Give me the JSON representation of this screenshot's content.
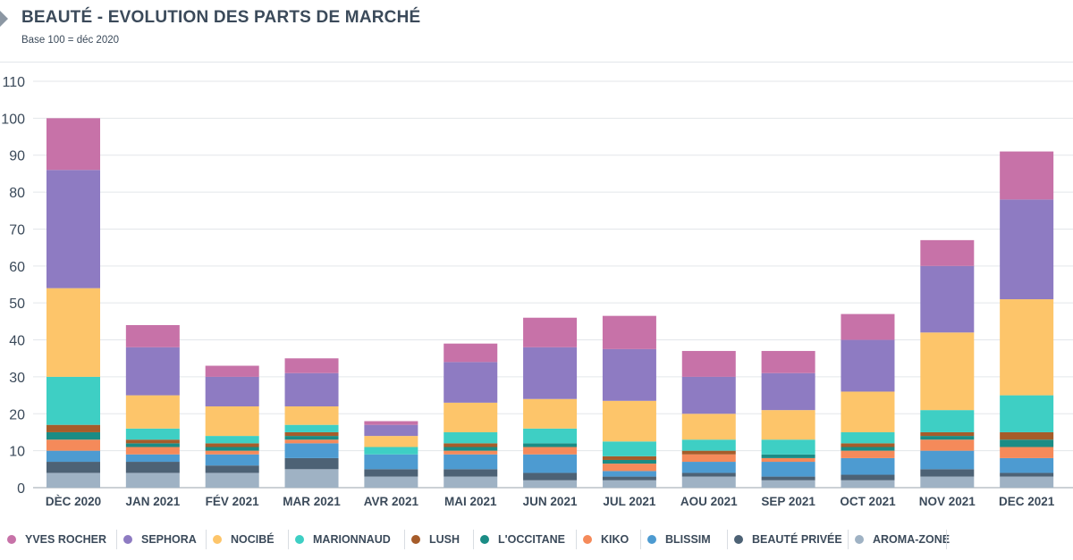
{
  "header": {
    "title": "BEAUTÉ - EVOLUTION DES PARTS DE MARCHÉ",
    "subtitle": "Base 100 = déc 2020"
  },
  "chart_data": {
    "type": "bar",
    "stacked": true,
    "categories": [
      "DÈC 2020",
      "JAN 2021",
      "FÉV 2021",
      "MAR 2021",
      "AVR 2021",
      "MAI 2021",
      "JUN 2021",
      "JUL 2021",
      "AOU 2021",
      "SEP 2021",
      "OCT 2021",
      "NOV 2021",
      "DEC 2021"
    ],
    "ylim": [
      0,
      110
    ],
    "yticks": [
      0,
      10,
      20,
      30,
      40,
      50,
      60,
      70,
      80,
      90,
      100,
      110
    ],
    "grid": true,
    "legend_position": "bottom",
    "series": [
      {
        "name": "AROMA-ZONE",
        "color": "#9fb2c4",
        "values": [
          4,
          4,
          4,
          5,
          3,
          3,
          2,
          2,
          3,
          2,
          2,
          3,
          3
        ]
      },
      {
        "name": "BEAUTÉ PRIVÉE",
        "color": "#4d6275",
        "values": [
          3,
          3,
          2,
          3,
          2,
          2,
          2,
          1,
          1,
          1,
          1.5,
          2,
          1
        ]
      },
      {
        "name": "BLISSIM",
        "color": "#4d9bd1",
        "values": [
          3,
          2,
          3,
          4,
          4,
          4,
          5,
          1.5,
          3,
          4,
          4.5,
          5,
          4
        ]
      },
      {
        "name": "KIKO",
        "color": "#f58a5a",
        "values": [
          3,
          2,
          1,
          1,
          0,
          1,
          2,
          2,
          2,
          1,
          2,
          3,
          3
        ]
      },
      {
        "name": "L'OCCITANE",
        "color": "#1a8c85",
        "values": [
          2,
          1,
          1,
          1,
          0,
          1,
          1,
          1,
          0,
          1,
          1,
          1,
          2
        ]
      },
      {
        "name": "LUSH",
        "color": "#a65c2a",
        "values": [
          2,
          1,
          1,
          1,
          0,
          1,
          0,
          1,
          1,
          0,
          1,
          1,
          2
        ]
      },
      {
        "name": "MARIONNAUD",
        "color": "#3ecfc4",
        "values": [
          13,
          3,
          2,
          2,
          2,
          3,
          4,
          4,
          3,
          4,
          3,
          6,
          10
        ]
      },
      {
        "name": "NOCIBÉ",
        "color": "#fdc56a",
        "values": [
          24,
          9,
          8,
          5,
          3,
          8,
          8,
          11,
          7,
          8,
          11,
          21,
          26
        ]
      },
      {
        "name": "SEPHORA",
        "color": "#8e7bc2",
        "values": [
          32,
          13,
          8,
          9,
          3,
          11,
          14,
          14,
          10,
          10,
          14,
          18,
          27
        ]
      },
      {
        "name": "YVES ROCHER",
        "color": "#c772a8",
        "values": [
          14,
          6,
          3,
          4,
          1,
          5,
          8,
          9,
          7,
          6,
          7,
          7,
          13
        ]
      }
    ]
  },
  "legend": {
    "items": [
      {
        "label": "YVES ROCHER",
        "color": "#c772a8"
      },
      {
        "label": "SEPHORA",
        "color": "#8e7bc2"
      },
      {
        "label": "NOCIBÉ",
        "color": "#fdc56a"
      },
      {
        "label": "MARIONNAUD",
        "color": "#3ecfc4"
      },
      {
        "label": "LUSH",
        "color": "#a65c2a"
      },
      {
        "label": "L'OCCITANE",
        "color": "#1a8c85"
      },
      {
        "label": "KIKO",
        "color": "#f58a5a"
      },
      {
        "label": "BLISSIM",
        "color": "#4d9bd1"
      },
      {
        "label": "BEAUTÉ PRIVÉE",
        "color": "#4d6275"
      },
      {
        "label": "AROMA-ZONE",
        "color": "#9fb2c4"
      }
    ]
  }
}
